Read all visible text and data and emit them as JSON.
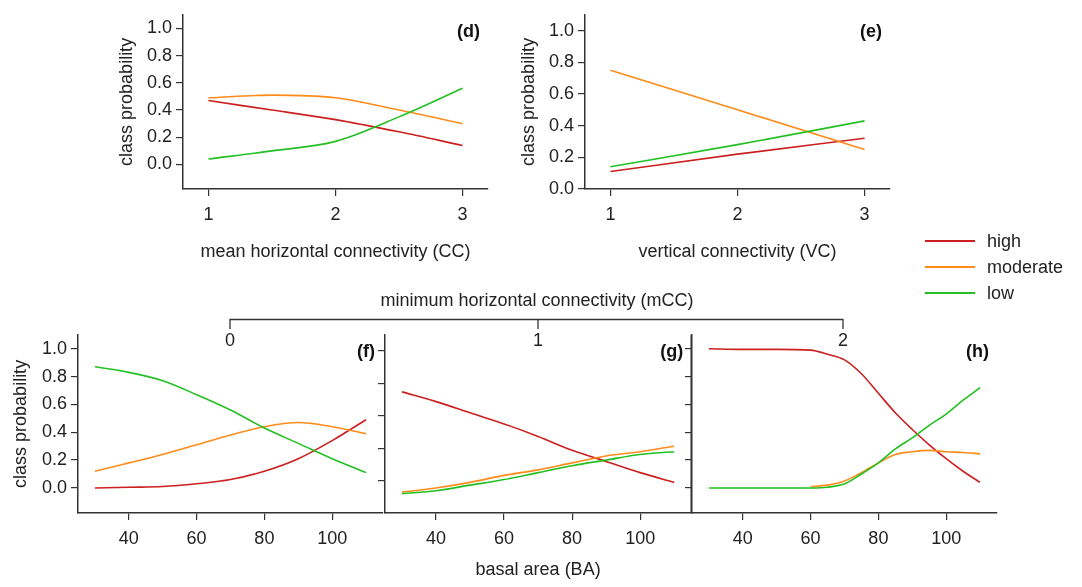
{
  "chart_data": [
    {
      "type": "line",
      "xlabel": "mean horizontal connectivity (CC)",
      "ylabel": "class probability",
      "annotations": [
        "(d)"
      ],
      "x": [
        1,
        1.5,
        2,
        2.5,
        3
      ],
      "xlim": [
        0.8,
        3.2
      ],
      "xticks": [
        1,
        2,
        3
      ],
      "ylim": [
        -0.18,
        1.1
      ],
      "yticks": [
        {
          "value": 0,
          "label": "0.0"
        },
        0.2,
        0.4,
        0.6,
        0.8,
        {
          "value": 1,
          "label": "1.0"
        }
      ],
      "grid": false,
      "series": [
        {
          "color": "#cc1f1f",
          "values": [
            0.47,
            0.4,
            0.33,
            0.24,
            0.14
          ]
        },
        {
          "color": "#ff8c1a",
          "values": [
            0.49,
            0.51,
            0.49,
            0.4,
            0.3
          ]
        },
        {
          "color": "#22c022",
          "values": [
            0.04,
            0.1,
            0.17,
            0.35,
            0.56
          ]
        }
      ]
    },
    {
      "type": "line",
      "xlabel": "vertical connectivity (VC)",
      "ylabel": "class probability",
      "annotations": [
        "(e)"
      ],
      "x": [
        1,
        2,
        3
      ],
      "xlim": [
        0.8,
        3.2
      ],
      "xticks": [
        1,
        2,
        3
      ],
      "ylim": [
        0,
        1.1
      ],
      "yticks": [
        {
          "value": 0,
          "label": "0.0"
        },
        0.2,
        0.4,
        0.6,
        0.8,
        {
          "value": 1,
          "label": "1.0"
        }
      ],
      "grid": false,
      "legend": "right",
      "series": [
        {
          "name": "high",
          "color": "#cc1f1f",
          "values": [
            0.11,
            0.22,
            0.32
          ]
        },
        {
          "name": "moderate",
          "color": "#ff8c1a",
          "values": [
            0.75,
            0.5,
            0.25
          ]
        },
        {
          "name": "low",
          "color": "#22c022",
          "values": [
            0.14,
            0.28,
            0.43
          ]
        }
      ]
    },
    {
      "type": "line",
      "ylabel": "class probability",
      "annotations": [
        "(f)",
        "0",
        "minimum horizontal connectivity (mCC)"
      ],
      "x": [
        30,
        40,
        50,
        60,
        70,
        80,
        90,
        100,
        110
      ],
      "xlim": [
        25,
        115
      ],
      "xticks": [
        40,
        60,
        80,
        100
      ],
      "ylim": [
        -0.18,
        1.1
      ],
      "yticks": [
        {
          "value": 0,
          "label": "0.0"
        },
        0.2,
        0.4,
        0.6,
        0.8,
        {
          "value": 1,
          "label": "1.0"
        }
      ],
      "grid": false,
      "series": [
        {
          "color": "#cc1f1f",
          "values": [
            0,
            0.005,
            0.01,
            0.03,
            0.06,
            0.12,
            0.21,
            0.34,
            0.49
          ]
        },
        {
          "color": "#ff8c1a",
          "values": [
            0.12,
            0.18,
            0.24,
            0.31,
            0.38,
            0.44,
            0.47,
            0.44,
            0.39
          ]
        },
        {
          "color": "#22c022",
          "values": [
            0.87,
            0.83,
            0.77,
            0.67,
            0.56,
            0.43,
            0.32,
            0.21,
            0.11
          ]
        }
      ]
    },
    {
      "type": "line",
      "xlabel": "basal area (BA)",
      "annotations": [
        "(g)",
        "1"
      ],
      "x": [
        30,
        40,
        50,
        60,
        70,
        80,
        90,
        100,
        110
      ],
      "xlim": [
        25,
        115
      ],
      "xticks": [
        40,
        60,
        80,
        100
      ],
      "ylim": [
        -0.18,
        1.1
      ],
      "yticks": [
        {
          "value": 0.05,
          "label": null
        },
        {
          "value": 0.28,
          "label": null
        },
        {
          "value": 0.52,
          "label": null
        },
        {
          "value": 0.75,
          "label": null
        },
        {
          "value": 0.99,
          "label": null
        }
      ],
      "tick_labels": "x",
      "grid": false,
      "series": [
        {
          "color": "#cc1f1f",
          "values": [
            0.69,
            0.62,
            0.54,
            0.46,
            0.37,
            0.27,
            0.19,
            0.11,
            0.04
          ]
        },
        {
          "color": "#ff8c1a",
          "values": [
            -0.03,
            0,
            0.04,
            0.09,
            0.13,
            0.18,
            0.23,
            0.26,
            0.3
          ]
        },
        {
          "color": "#22c022",
          "values": [
            -0.04,
            -0.02,
            0.02,
            0.06,
            0.11,
            0.16,
            0.2,
            0.24,
            0.26
          ]
        }
      ]
    },
    {
      "type": "line",
      "annotations": [
        "(h)",
        "2"
      ],
      "x": [
        30,
        40,
        50,
        60,
        65,
        70,
        75,
        80,
        85,
        90,
        95,
        100,
        105,
        110
      ],
      "xlim": [
        25,
        115
      ],
      "xticks": [
        40,
        60,
        80,
        100
      ],
      "ylim": [
        -0.18,
        1.1
      ],
      "yticks": [
        {
          "value": 0,
          "label": null
        },
        {
          "value": 0.2,
          "label": null
        },
        {
          "value": 0.4,
          "label": null
        },
        {
          "value": 0.6,
          "label": null
        },
        {
          "value": 0.8,
          "label": null
        },
        {
          "value": 1.0,
          "label": null
        }
      ],
      "tick_labels": "x",
      "grid": false,
      "series": [
        {
          "color": "#cc1f1f",
          "values": [
            1,
            0.995,
            0.995,
            0.99,
            0.96,
            0.92,
            0.82,
            0.68,
            0.54,
            0.42,
            0.31,
            0.21,
            0.12,
            0.04
          ]
        },
        {
          "color": "#ff8c1a",
          "values": [
            null,
            null,
            null,
            0.01,
            0.02,
            0.05,
            0.11,
            0.18,
            0.24,
            0.26,
            0.27,
            0.26,
            0.255,
            0.245
          ]
        },
        {
          "color": "#22c022",
          "values": [
            0,
            0,
            0,
            0,
            0.005,
            0.03,
            0.1,
            0.18,
            0.28,
            0.36,
            0.45,
            0.53,
            0.63,
            0.72
          ]
        }
      ]
    }
  ]
}
